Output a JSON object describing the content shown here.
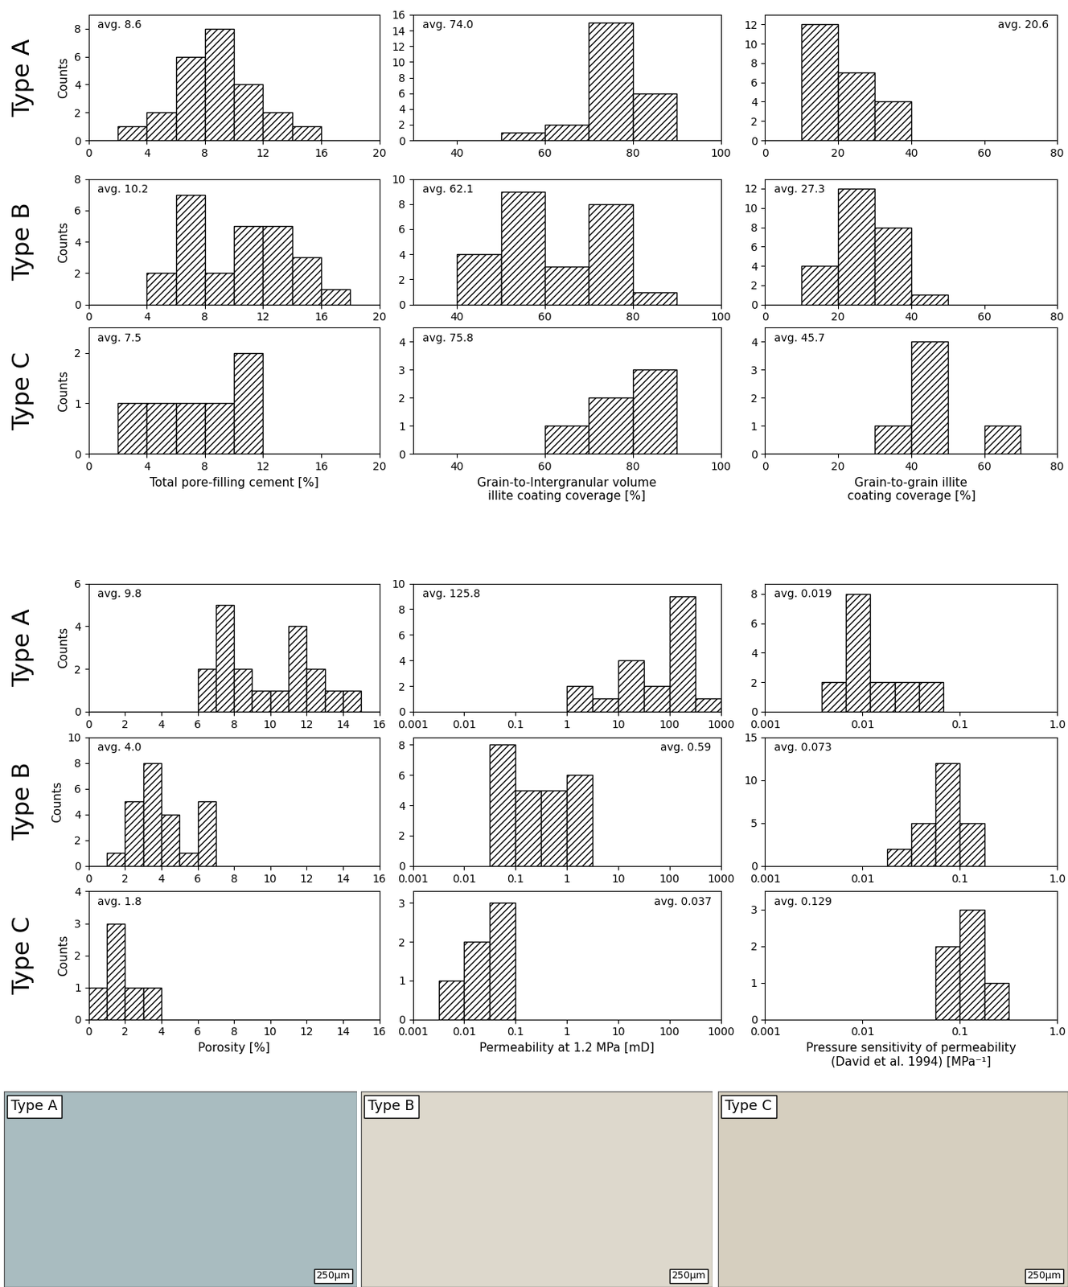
{
  "chart_data": [
    {
      "type": "histogram",
      "row_label": "Type A",
      "ylabel": "Counts",
      "annotation": "avg. 8.6",
      "color": "#000000",
      "bins": [
        0,
        2,
        4,
        6,
        8,
        10,
        12,
        14,
        16,
        18,
        20
      ],
      "counts": [
        0,
        1,
        2,
        6,
        8,
        4,
        2,
        1,
        0,
        0
      ],
      "xlim": [
        0,
        20
      ],
      "xticks": [
        0,
        4,
        8,
        12,
        16,
        20
      ],
      "ylim": [
        0,
        9
      ],
      "yticks": [
        0,
        2,
        4,
        6,
        8
      ]
    },
    {
      "type": "histogram",
      "annotation": "avg. 74.0",
      "color": "#000000",
      "bins": [
        30,
        40,
        50,
        60,
        70,
        80,
        90,
        100
      ],
      "counts": [
        0,
        0,
        1,
        2,
        15,
        6,
        0
      ],
      "xlim": [
        30,
        100
      ],
      "xticks": [
        40,
        60,
        80,
        100
      ],
      "ylim": [
        0,
        16
      ],
      "yticks": [
        0,
        2,
        4,
        6,
        8,
        10,
        12,
        14,
        16
      ]
    },
    {
      "type": "histogram",
      "annotation": "avg. 20.6",
      "color": "#000000",
      "bins": [
        0,
        10,
        20,
        30,
        40,
        50,
        60,
        70,
        80
      ],
      "counts": [
        0,
        12,
        7,
        4,
        0,
        0,
        0,
        0
      ],
      "xlim": [
        0,
        80
      ],
      "xticks": [
        0,
        20,
        40,
        60,
        80
      ],
      "ylim": [
        0,
        13
      ],
      "yticks": [
        0,
        2,
        4,
        6,
        8,
        10,
        12
      ]
    },
    {
      "type": "histogram",
      "row_label": "Type B",
      "ylabel": "Counts",
      "annotation": "avg. 10.2",
      "color": "#000000",
      "bins": [
        0,
        2,
        4,
        6,
        8,
        10,
        12,
        14,
        16,
        18,
        20
      ],
      "counts": [
        0,
        0,
        2,
        7,
        2,
        5,
        5,
        3,
        1,
        0
      ],
      "xlim": [
        0,
        20
      ],
      "xticks": [
        0,
        4,
        8,
        12,
        16,
        20
      ],
      "ylim": [
        0,
        8
      ],
      "yticks": [
        0,
        2,
        4,
        6,
        8
      ]
    },
    {
      "type": "histogram",
      "annotation": "avg. 62.1",
      "color": "#000000",
      "bins": [
        30,
        40,
        50,
        60,
        70,
        80,
        90,
        100
      ],
      "counts": [
        0,
        4,
        9,
        3,
        8,
        1,
        0
      ],
      "xlim": [
        30,
        100
      ],
      "xticks": [
        40,
        60,
        80,
        100
      ],
      "ylim": [
        0,
        10
      ],
      "yticks": [
        0,
        2,
        4,
        6,
        8,
        10
      ]
    },
    {
      "type": "histogram",
      "annotation": "avg. 27.3",
      "color": "#000000",
      "bins": [
        0,
        10,
        20,
        30,
        40,
        50,
        60,
        70,
        80
      ],
      "counts": [
        0,
        4,
        12,
        8,
        1,
        0,
        0,
        0
      ],
      "xlim": [
        0,
        80
      ],
      "xticks": [
        0,
        20,
        40,
        60,
        80
      ],
      "ylim": [
        0,
        13
      ],
      "yticks": [
        0,
        2,
        4,
        6,
        8,
        10,
        12
      ]
    },
    {
      "type": "histogram",
      "row_label": "Type C",
      "ylabel": "Counts",
      "annotation": "avg. 7.5",
      "color": "#000000",
      "xlabel": "Total pore-filling cement [%]",
      "bins": [
        0,
        2,
        4,
        6,
        8,
        10,
        12,
        14,
        16,
        18,
        20
      ],
      "counts": [
        0,
        1,
        1,
        1,
        1,
        2,
        0,
        0,
        0,
        0
      ],
      "xlim": [
        0,
        20
      ],
      "xticks": [
        0,
        4,
        8,
        12,
        16,
        20
      ],
      "ylim": [
        0,
        2.5
      ],
      "yticks": [
        0,
        1,
        2
      ]
    },
    {
      "type": "histogram",
      "annotation": "avg. 75.8",
      "color": "#000000",
      "xlabel": "Grain-to-Intergranular volume\nillite coating coverage [%]",
      "bins": [
        30,
        40,
        50,
        60,
        70,
        80,
        90,
        100
      ],
      "counts": [
        0,
        0,
        0,
        1,
        2,
        3,
        0
      ],
      "xlim": [
        30,
        100
      ],
      "xticks": [
        40,
        60,
        80,
        100
      ],
      "ylim": [
        0,
        4.5
      ],
      "yticks": [
        0,
        1,
        2,
        3,
        4
      ]
    },
    {
      "type": "histogram",
      "annotation": "avg. 45.7",
      "color": "#000000",
      "xlabel": "Grain-to-grain illite\ncoating coverage [%]",
      "bins": [
        0,
        10,
        20,
        30,
        40,
        50,
        60,
        70,
        80
      ],
      "counts": [
        0,
        0,
        0,
        1,
        4,
        0,
        1,
        0
      ],
      "xlim": [
        0,
        80
      ],
      "xticks": [
        0,
        20,
        40,
        60,
        80
      ],
      "ylim": [
        0,
        4.5
      ],
      "yticks": [
        0,
        1,
        2,
        3,
        4
      ]
    },
    {
      "type": "histogram",
      "row_label": "Type A",
      "ylabel": "Counts",
      "annotation": "avg. 9.8",
      "color": "#000000",
      "bins": [
        0,
        1,
        2,
        3,
        4,
        5,
        6,
        7,
        8,
        9,
        10,
        11,
        12,
        13,
        14,
        15,
        16
      ],
      "counts": [
        0,
        0,
        0,
        0,
        0,
        0,
        2,
        5,
        2,
        1,
        1,
        4,
        2,
        1,
        1,
        0
      ],
      "xlim": [
        0,
        16
      ],
      "xticks": [
        0,
        2,
        4,
        6,
        8,
        10,
        12,
        14,
        16
      ],
      "ylim": [
        0,
        6
      ],
      "yticks": [
        0,
        2,
        4,
        6
      ]
    },
    {
      "type": "histogram",
      "log": "x",
      "annotation": "avg. 125.8",
      "color": "#000000",
      "bins": [
        1,
        3.16,
        10,
        31.6,
        100,
        316,
        1000
      ],
      "counts": [
        2,
        1,
        4,
        2,
        9,
        1
      ],
      "xlim": [
        0.001,
        1000
      ],
      "xticks": [
        0.001,
        0.01,
        0.1,
        1,
        10,
        100,
        1000
      ],
      "ylim": [
        0,
        10
      ],
      "yticks": [
        0,
        2,
        4,
        6,
        8,
        10
      ]
    },
    {
      "type": "histogram",
      "log": "x",
      "annotation": "avg. 0.019",
      "color": "#000000",
      "bins": [
        0.0038,
        0.0068,
        0.012,
        0.0214,
        0.038,
        0.068
      ],
      "counts": [
        2,
        8,
        2,
        2,
        2
      ],
      "xlim": [
        0.001,
        1
      ],
      "xticks": [
        0.001,
        0.01,
        0.1,
        {
          "value": 1,
          "label": "1.0"
        }
      ],
      "ylim": [
        0,
        8.7
      ],
      "yticks": [
        0,
        2,
        4,
        6,
        8
      ]
    },
    {
      "type": "histogram",
      "row_label": "Type B",
      "ylabel": "Counts",
      "annotation": "avg. 4.0",
      "color": "#000000",
      "bins": [
        0,
        1,
        2,
        3,
        4,
        5,
        6,
        7,
        8,
        9,
        10,
        11,
        12,
        13,
        14,
        15,
        16
      ],
      "counts": [
        0,
        1,
        5,
        8,
        4,
        1,
        5,
        0,
        0,
        0,
        0,
        0,
        0,
        0,
        0,
        0
      ],
      "xlim": [
        0,
        16
      ],
      "xticks": [
        0,
        2,
        4,
        6,
        8,
        10,
        12,
        14,
        16
      ],
      "ylim": [
        0,
        10
      ],
      "yticks": [
        0,
        2,
        4,
        6,
        8,
        10
      ]
    },
    {
      "type": "histogram",
      "log": "x",
      "annotation": "avg. 0.59",
      "color": "#000000",
      "bins": [
        0.0316,
        0.1,
        0.316,
        1,
        3.16
      ],
      "counts": [
        8,
        5,
        5,
        6
      ],
      "xlim": [
        0.001,
        1000
      ],
      "xticks": [
        0.001,
        0.01,
        0.1,
        1,
        10,
        100,
        1000
      ],
      "ylim": [
        0,
        8.5
      ],
      "yticks": [
        0,
        2,
        4,
        6,
        8
      ]
    },
    {
      "type": "histogram",
      "log": "x",
      "annotation": "avg. 0.073",
      "color": "#000000",
      "bins": [
        0.0178,
        0.0316,
        0.0562,
        0.1,
        0.178
      ],
      "counts": [
        2,
        5,
        12,
        5
      ],
      "xlim": [
        0.001,
        1
      ],
      "xticks": [
        0.001,
        0.01,
        0.1,
        {
          "value": 1,
          "label": "1.0"
        }
      ],
      "ylim": [
        0,
        15
      ],
      "yticks": [
        0,
        5,
        10,
        15
      ]
    },
    {
      "type": "histogram",
      "row_label": "Type C",
      "ylabel": "Counts",
      "annotation": "avg. 1.8",
      "color": "#000000",
      "xlabel": "Porosity [%]",
      "bins": [
        0,
        1,
        2,
        3,
        4,
        5,
        6,
        7,
        8,
        9,
        10,
        11,
        12,
        13,
        14,
        15,
        16
      ],
      "counts": [
        1,
        3,
        1,
        1,
        0,
        0,
        0,
        0,
        0,
        0,
        0,
        0,
        0,
        0,
        0,
        0
      ],
      "xlim": [
        0,
        16
      ],
      "xticks": [
        0,
        2,
        4,
        6,
        8,
        10,
        12,
        14,
        16
      ],
      "ylim": [
        0,
        4
      ],
      "yticks": [
        0,
        1,
        2,
        3,
        4
      ]
    },
    {
      "type": "histogram",
      "log": "x",
      "annotation": "avg. 0.037",
      "color": "#000000",
      "xlabel": "Permeability at 1.2 MPa [mD]",
      "bins": [
        0.00316,
        0.01,
        0.0316,
        0.1
      ],
      "counts": [
        1,
        2,
        3
      ],
      "xlim": [
        0.001,
        1000
      ],
      "xticks": [
        0.001,
        0.01,
        0.1,
        1,
        10,
        100,
        1000
      ],
      "ylim": [
        0,
        3.3
      ],
      "yticks": [
        0,
        1,
        2,
        3
      ]
    },
    {
      "type": "histogram",
      "log": "x",
      "annotation": "avg. 0.129",
      "color": "#000000",
      "xlabel": "Pressure sensitivity of permeability\n(David et al. 1994) [MPa⁻¹]",
      "bins": [
        0.0562,
        0.1,
        0.178,
        0.316
      ],
      "counts": [
        2,
        3,
        1
      ],
      "xlim": [
        0.001,
        1
      ],
      "xticks": [
        0.001,
        0.01,
        0.1,
        {
          "value": 1,
          "label": "1.0"
        }
      ],
      "ylim": [
        0,
        3.5
      ],
      "yticks": [
        0,
        1,
        2,
        3
      ]
    }
  ],
  "images": [
    {
      "label": "Type A",
      "scale_bar": "250µm"
    },
    {
      "label": "Type B",
      "scale_bar": "250µm"
    },
    {
      "label": "Type C",
      "scale_bar": "250µm"
    }
  ]
}
